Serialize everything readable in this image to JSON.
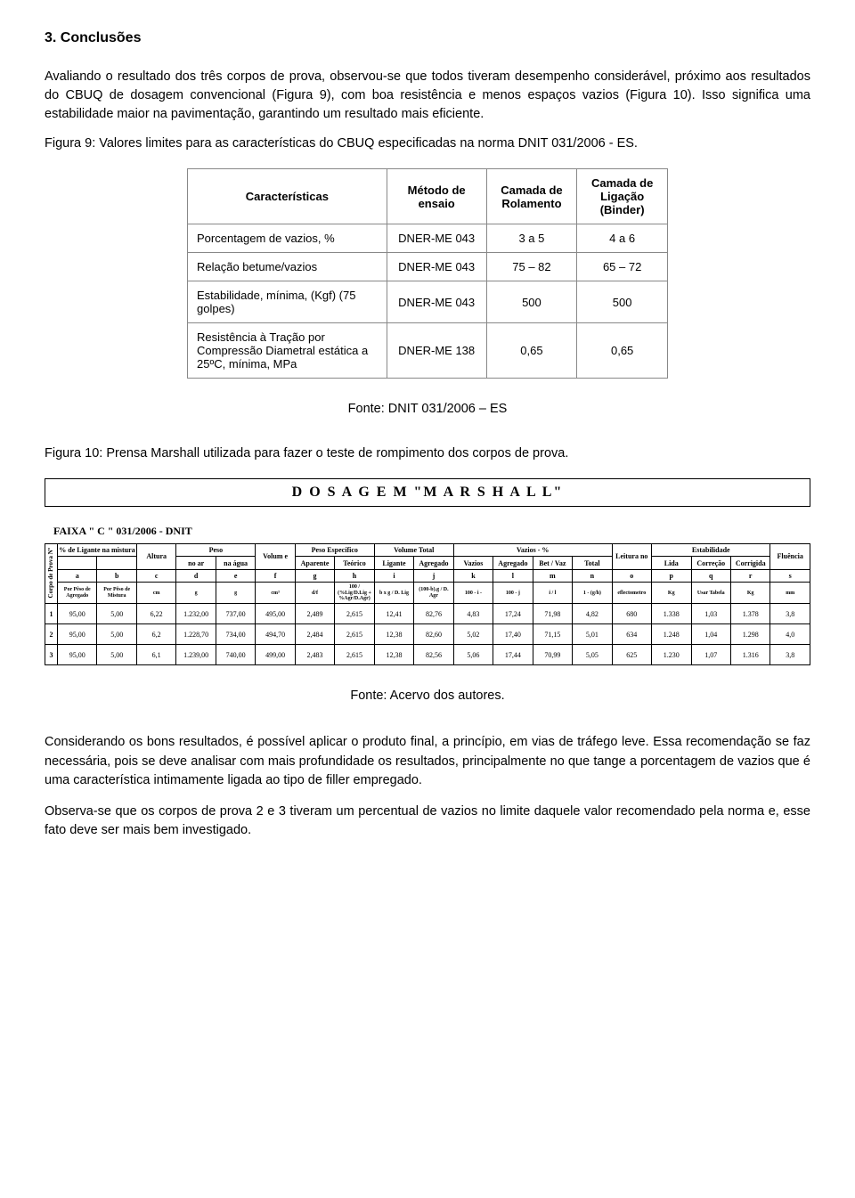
{
  "section_title": "3. Conclusões",
  "para1": "Avaliando o resultado dos três corpos de prova, observou-se que todos tiveram desempenho considerável, próximo aos resultados do CBUQ de dosagem convencional (Figura 9), com boa resistência e menos espaços vazios (Figura 10). Isso significa uma estabilidade maior na pavimentação, garantindo um resultado mais eficiente.",
  "fig9_caption": "Figura 9: Valores limites para as características do CBUQ especificadas na norma DNIT 031/2006 - ES.",
  "fig9": {
    "headers": [
      "Características",
      "Método de ensaio",
      "Camada de Rolamento",
      "Camada de Ligação (Binder)"
    ],
    "rows": [
      [
        "Porcentagem de vazios, %",
        "DNER-ME 043",
        "3 a 5",
        "4 a 6"
      ],
      [
        "Relação betume/vazios",
        "DNER-ME 043",
        "75 – 82",
        "65 – 72"
      ],
      [
        "Estabilidade, mínima, (Kgf) (75 golpes)",
        "DNER-ME 043",
        "500",
        "500"
      ],
      [
        "Resistência à Tração por Compressão Diametral estática a 25ºC, mínima, MPa",
        "DNER-ME 138",
        "0,65",
        "0,65"
      ]
    ]
  },
  "fig9_fonte": "Fonte: DNIT 031/2006 – ES",
  "fig10_caption": "Figura 10: Prensa Marshall utilizada para fazer o teste de rompimento dos corpos de prova.",
  "marshall_title": "D O S A G E M    \"M A R S H A L L\"",
  "faixa": "FAIXA \" C \" 031/2006  -  DNIT",
  "marshall": {
    "group_headers": [
      {
        "label": "Corpo de Prova Nº",
        "span": 1,
        "rows": 4,
        "vertical": true
      },
      {
        "label": "% de Ligante na mistura",
        "span": 2,
        "rows": 1
      },
      {
        "label": "Altura",
        "span": 1,
        "rows": 2
      },
      {
        "label": "Peso",
        "span": 2,
        "rows": 1
      },
      {
        "label": "Volum e",
        "span": 1,
        "rows": 2
      },
      {
        "label": "Peso Específico",
        "span": 2,
        "rows": 1
      },
      {
        "label": "Volume Total",
        "span": 2,
        "rows": 1
      },
      {
        "label": "Vazios - %",
        "span": 4,
        "rows": 1
      },
      {
        "label": "Leitura no",
        "span": 1,
        "rows": 2
      },
      {
        "label": "Estabilidade",
        "span": 3,
        "rows": 1
      },
      {
        "label": "Fluência",
        "span": 1,
        "rows": 2
      }
    ],
    "sub_headers_r2": [
      "",
      "",
      "no ar",
      "na água",
      "Aparente",
      "Teórico",
      "Ligante",
      "Agregado",
      "Vazios",
      "Agregado",
      "Bet / Vaz",
      "Total",
      "Lida",
      "Correção",
      "Corrigida"
    ],
    "letters": [
      "a",
      "b",
      "c",
      "d",
      "e",
      "f",
      "g",
      "h",
      "i",
      "j",
      "k",
      "l",
      "m",
      "n",
      "o",
      "p",
      "q",
      "r",
      "s"
    ],
    "units": [
      "Por Pêso de Agregado",
      "Por Pêso de Mistura",
      "cm",
      "g",
      "g",
      "cm³",
      "d/f",
      "100 / (%Lig/D.Lig + %Agr/D.Agr)",
      "b x g / D. Lig",
      "(100-b).g / D. Agr",
      "100 - i -",
      "100 - j",
      "i / l",
      "1 - (g/h)",
      "eflectometro",
      "Kg",
      "Usar Tabela",
      "Kg",
      "mm"
    ],
    "rows": [
      [
        "1",
        "95,00",
        "5,00",
        "6,22",
        "1.232,00",
        "737,00",
        "495,00",
        "2,489",
        "2,615",
        "12,41",
        "82,76",
        "4,83",
        "17,24",
        "71,98",
        "4,82",
        "680",
        "1.338",
        "1,03",
        "1.378",
        "3,8"
      ],
      [
        "2",
        "95,00",
        "5,00",
        "6,2",
        "1.228,70",
        "734,00",
        "494,70",
        "2,484",
        "2,615",
        "12,38",
        "82,60",
        "5,02",
        "17,40",
        "71,15",
        "5,01",
        "634",
        "1.248",
        "1,04",
        "1.298",
        "4,0"
      ],
      [
        "3",
        "95,00",
        "5,00",
        "6,1",
        "1.239,00",
        "740,00",
        "499,00",
        "2,483",
        "2,615",
        "12,38",
        "82,56",
        "5,06",
        "17,44",
        "70,99",
        "5,05",
        "625",
        "1.230",
        "1,07",
        "1.316",
        "3,8"
      ]
    ]
  },
  "fig10_fonte": "Fonte: Acervo dos autores.",
  "para2": "Considerando os bons resultados, é possível aplicar o produto final, a princípio, em vias de tráfego leve. Essa recomendação se faz necessária, pois se deve analisar com mais profundidade os resultados, principalmente no que tange a porcentagem de vazios que é uma característica intimamente ligada ao tipo de filler empregado.",
  "para3": "Observa-se que os corpos de prova 2 e 3 tiveram um percentual de vazios no limite daquele valor recomendado pela norma e, esse fato deve ser mais bem investigado."
}
